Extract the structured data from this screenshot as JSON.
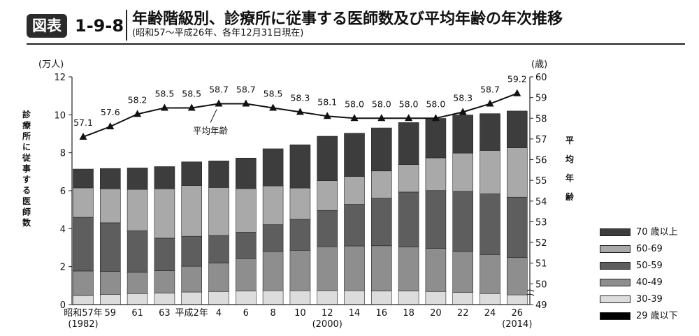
{
  "header": {
    "badge": "図表",
    "number": "1-9-8",
    "title": "年齢階級別、診療所に従事する医師数及び平均年齢の年次推移",
    "subtitle": "(昭和57〜平成26年、各年12月31日現在)"
  },
  "chart_data": {
    "type": "bar",
    "stacked": true,
    "y_left": {
      "unit": "(万人)",
      "label": "診療所に従事する医師数",
      "min": 0,
      "max": 12,
      "ticks": [
        0,
        2,
        4,
        6,
        8,
        10,
        12
      ]
    },
    "y_right": {
      "unit": "(歳)",
      "label": "平均年齢",
      "min": 49,
      "max": 60,
      "ticks": [
        49,
        50,
        51,
        52,
        53,
        54,
        55,
        56,
        57,
        58,
        59,
        60
      ]
    },
    "x_labels": [
      "昭和57年",
      "59",
      "61",
      "63",
      "平成2年",
      "4",
      "6",
      "8",
      "10",
      "12",
      "14",
      "16",
      "18",
      "20",
      "22",
      "24",
      "26"
    ],
    "x_sublabels": {
      "0": "(1982)",
      "9": "(2000)",
      "16": "(2014)"
    },
    "legend": [
      {
        "label": "70 歳以上",
        "color": "#3d3d3d"
      },
      {
        "label": "60-69",
        "color": "#a9a9a9"
      },
      {
        "label": "50-59",
        "color": "#5e5e5e"
      },
      {
        "label": "40-49",
        "color": "#8e8e8e"
      },
      {
        "label": "30-39",
        "color": "#dcdcdc"
      },
      {
        "label": "29 歳以下",
        "color": "#000000"
      }
    ],
    "series": [
      {
        "name": "29 歳以下",
        "color": "#000000",
        "values": [
          0.01,
          0.01,
          0.01,
          0.01,
          0.01,
          0.01,
          0.01,
          0.01,
          0.01,
          0.01,
          0.01,
          0.01,
          0.01,
          0.01,
          0.01,
          0.01,
          0.01
        ]
      },
      {
        "name": "30-39",
        "color": "#dcdcdc",
        "values": [
          0.47,
          0.53,
          0.57,
          0.6,
          0.65,
          0.68,
          0.7,
          0.72,
          0.72,
          0.73,
          0.72,
          0.71,
          0.71,
          0.68,
          0.63,
          0.57,
          0.5
        ]
      },
      {
        "name": "40-49",
        "color": "#8e8e8e",
        "values": [
          1.29,
          1.2,
          1.12,
          1.17,
          1.36,
          1.5,
          1.71,
          2.06,
          2.13,
          2.31,
          2.36,
          2.38,
          2.32,
          2.27,
          2.16,
          2.06,
          1.97
        ]
      },
      {
        "name": "50-59",
        "color": "#5e5e5e",
        "values": [
          2.83,
          2.57,
          2.19,
          1.72,
          1.58,
          1.45,
          1.39,
          1.42,
          1.63,
          1.91,
          2.19,
          2.5,
          2.89,
          3.05,
          3.16,
          3.19,
          3.18
        ]
      },
      {
        "name": "60-69",
        "color": "#a9a9a9",
        "values": [
          1.55,
          1.79,
          2.18,
          2.6,
          2.67,
          2.53,
          2.3,
          2.04,
          1.65,
          1.57,
          1.47,
          1.44,
          1.45,
          1.72,
          2.02,
          2.29,
          2.6
        ]
      },
      {
        "name": "70 歳以上",
        "color": "#3d3d3d",
        "values": [
          0.99,
          1.07,
          1.13,
          1.17,
          1.25,
          1.4,
          1.61,
          1.96,
          2.28,
          2.34,
          2.28,
          2.27,
          2.21,
          2.08,
          2.01,
          1.94,
          1.94
        ]
      }
    ],
    "line": {
      "name": "平均年齢",
      "values": [
        57.1,
        57.6,
        58.2,
        58.5,
        58.5,
        58.7,
        58.7,
        58.5,
        58.3,
        58.1,
        58.0,
        58.0,
        58.0,
        58.0,
        58.3,
        58.7,
        59.2
      ]
    }
  }
}
